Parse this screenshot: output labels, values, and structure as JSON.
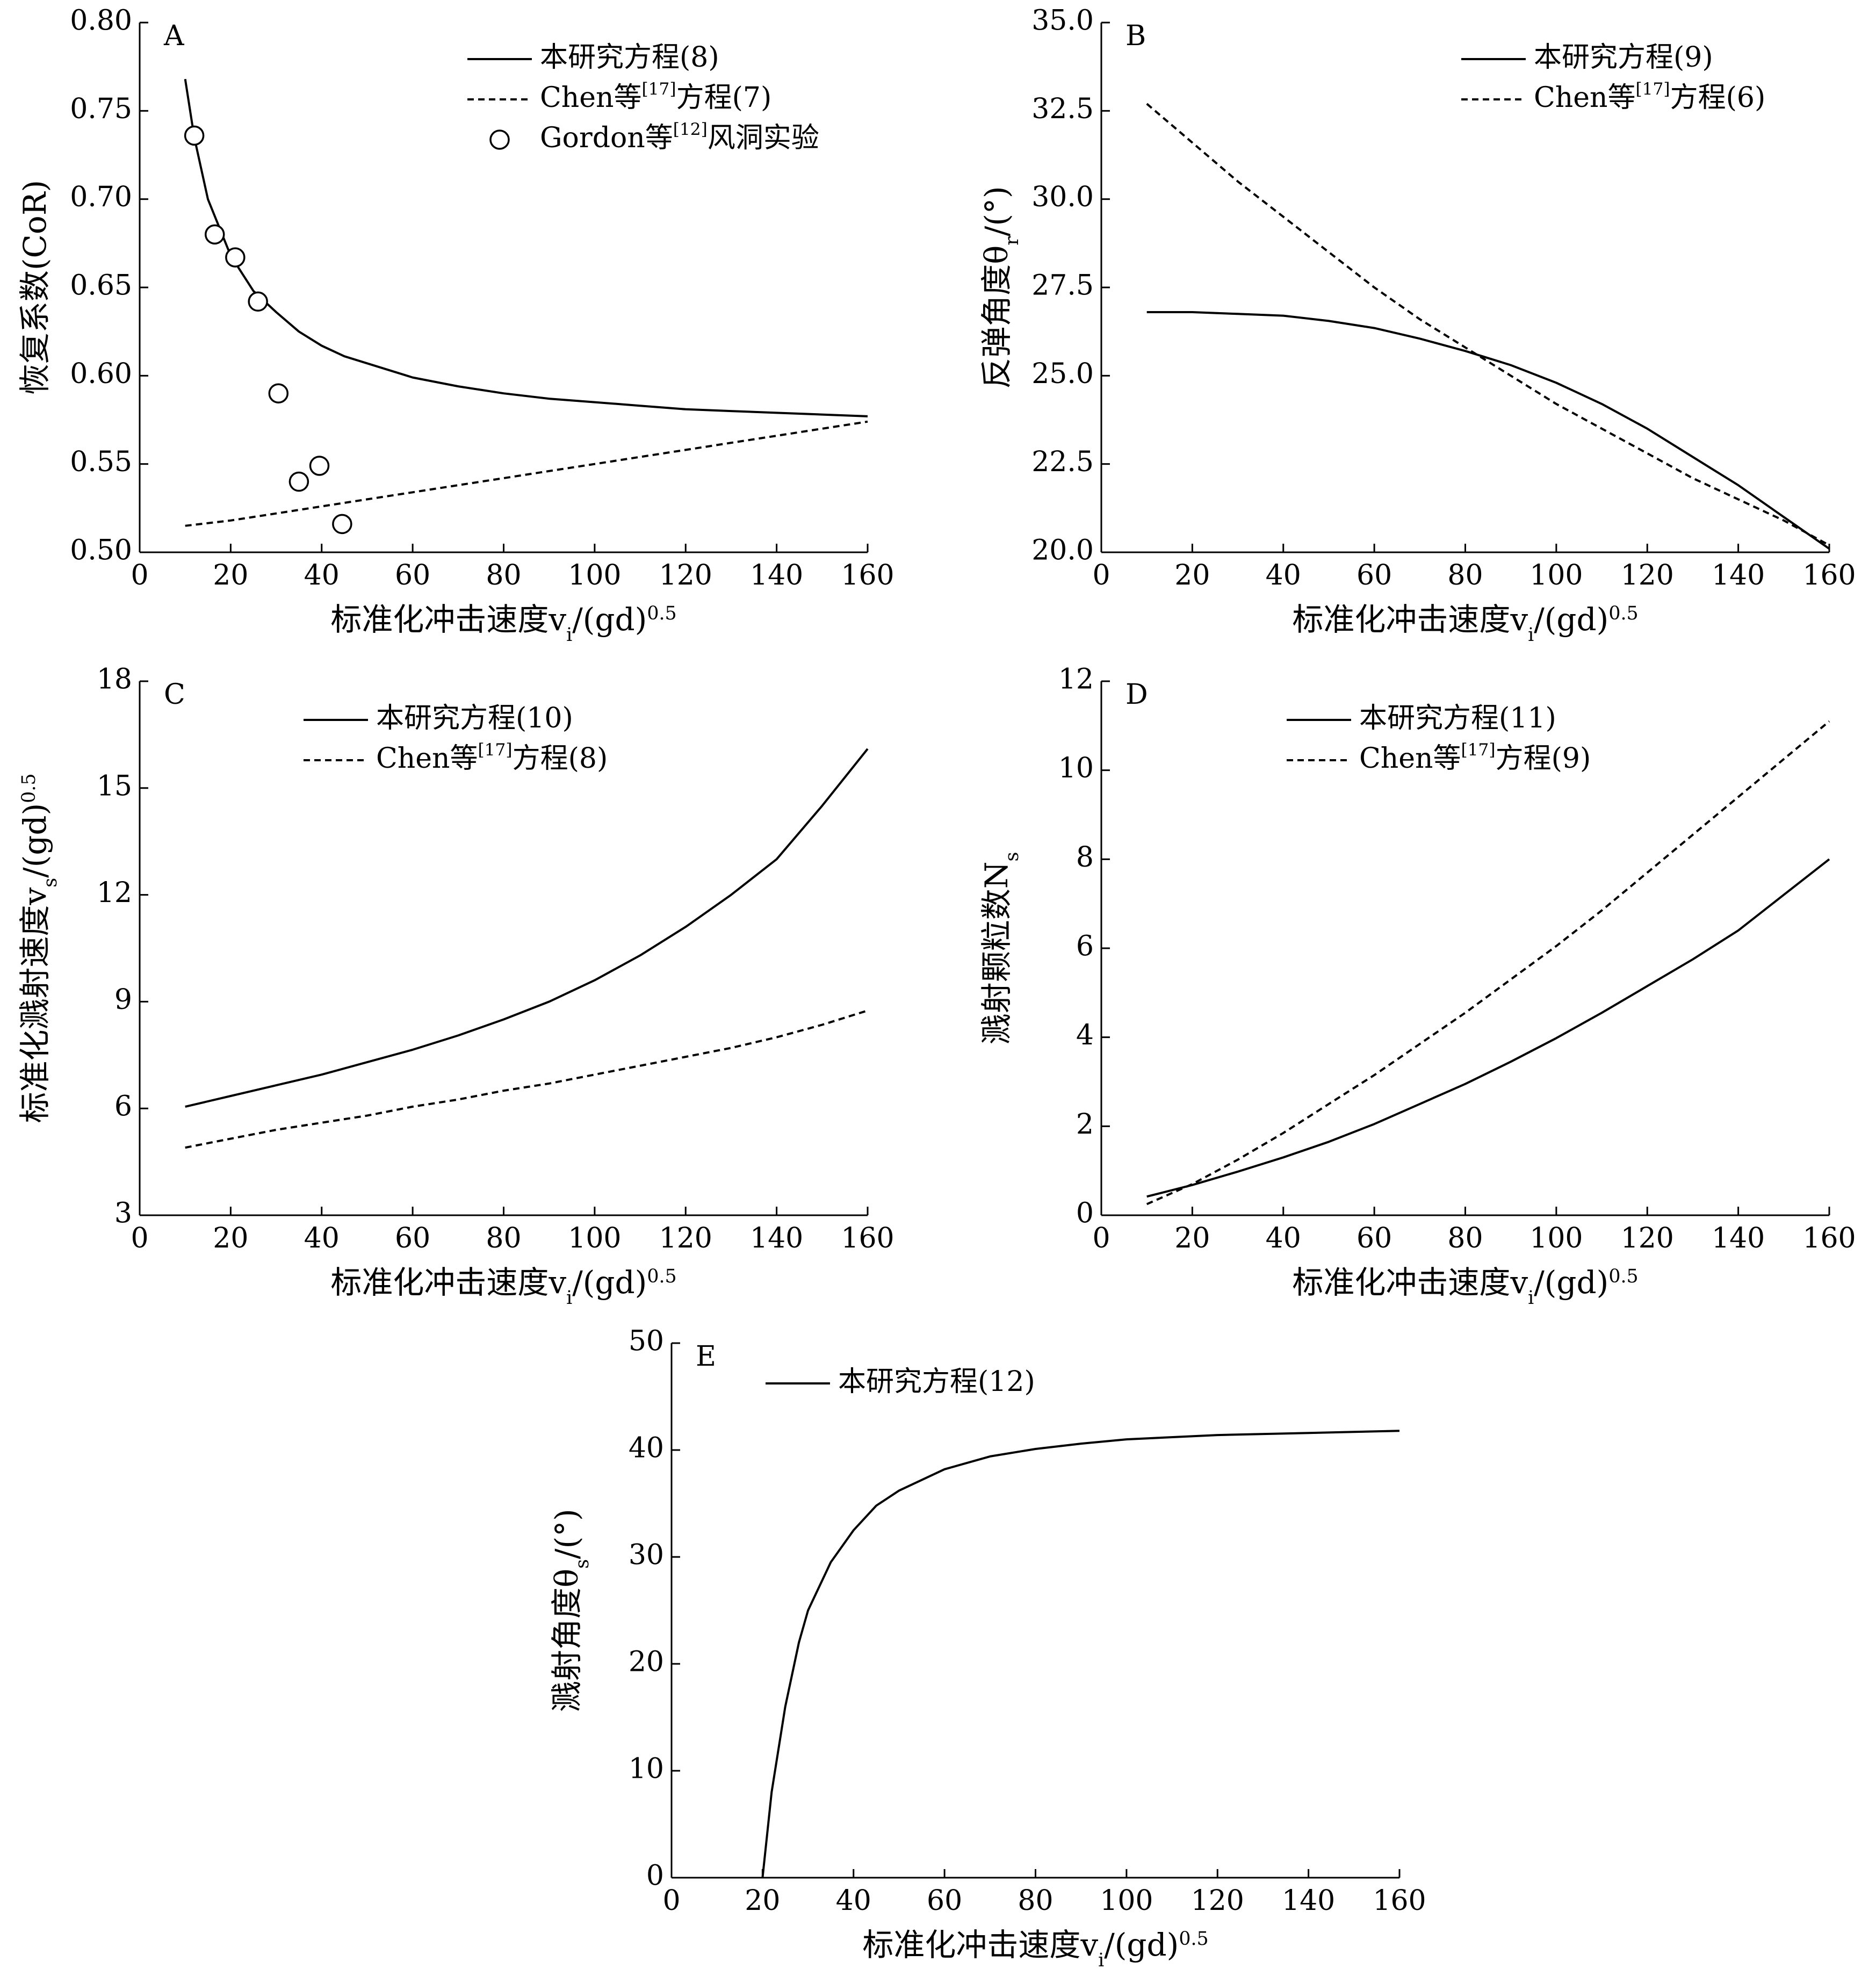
{
  "chart_data": [
    {
      "panel": "A",
      "type": "line",
      "xlabel": "标准化冲击速度v_i/(gd)^0.5",
      "ylabel": "恢复系数(CoR)",
      "xlim": [
        0,
        160
      ],
      "ylim": [
        0.5,
        0.8
      ],
      "xticks": [
        0,
        20,
        40,
        60,
        80,
        100,
        120,
        140,
        160
      ],
      "yticks": [
        0.5,
        0.55,
        0.6,
        0.65,
        0.7,
        0.75,
        0.8
      ],
      "ytick_decimals": 2,
      "grid": false,
      "legend_position": "top-right",
      "series": [
        {
          "name": "本研究方程(8)",
          "style": "solid",
          "x": [
            10,
            12,
            15,
            20,
            25,
            30,
            35,
            40,
            45,
            50,
            60,
            70,
            80,
            90,
            100,
            110,
            120,
            130,
            140,
            150,
            160
          ],
          "values": [
            0.768,
            0.735,
            0.7,
            0.668,
            0.648,
            0.636,
            0.625,
            0.617,
            0.611,
            0.607,
            0.599,
            0.594,
            0.59,
            0.587,
            0.585,
            0.583,
            0.581,
            0.58,
            0.579,
            0.578,
            0.577
          ]
        },
        {
          "name": "Chen等[17]方程(7)",
          "style": "dashed",
          "x": [
            10,
            20,
            30,
            40,
            50,
            60,
            70,
            80,
            90,
            100,
            110,
            120,
            130,
            140,
            150,
            160
          ],
          "values": [
            0.515,
            0.518,
            0.522,
            0.526,
            0.53,
            0.534,
            0.538,
            0.542,
            0.546,
            0.55,
            0.554,
            0.558,
            0.562,
            0.566,
            0.57,
            0.574
          ]
        },
        {
          "name": "Gordon等[12]风洞实验",
          "style": "markers",
          "x": [
            12,
            16.5,
            21,
            26,
            30.5,
            35,
            39.5,
            44.5
          ],
          "values": [
            0.736,
            0.68,
            0.667,
            0.642,
            0.59,
            0.54,
            0.549,
            0.516
          ]
        }
      ]
    },
    {
      "panel": "B",
      "type": "line",
      "xlabel": "标准化冲击速度v_i/(gd)^0.5",
      "ylabel": "反弹角度θ_r/(°)",
      "xlim": [
        0,
        160
      ],
      "ylim": [
        20,
        35
      ],
      "xticks": [
        0,
        20,
        40,
        60,
        80,
        100,
        120,
        140,
        160
      ],
      "yticks": [
        20,
        22.5,
        25,
        27.5,
        30,
        32.5,
        35
      ],
      "ytick_decimals": 1,
      "grid": false,
      "legend_position": "top-right",
      "series": [
        {
          "name": "本研究方程(9)",
          "style": "solid",
          "x": [
            10,
            20,
            30,
            40,
            50,
            60,
            70,
            80,
            90,
            100,
            110,
            120,
            130,
            140,
            150,
            160
          ],
          "values": [
            26.8,
            26.8,
            26.75,
            26.7,
            26.55,
            26.35,
            26.05,
            25.7,
            25.3,
            24.8,
            24.2,
            23.5,
            22.7,
            21.9,
            21.0,
            20.1
          ]
        },
        {
          "name": "Chen等[17]方程(6)",
          "style": "dashed",
          "x": [
            10,
            20,
            30,
            40,
            50,
            60,
            70,
            80,
            90,
            100,
            110,
            120,
            130,
            140,
            150,
            160
          ],
          "values": [
            32.7,
            31.6,
            30.5,
            29.5,
            28.5,
            27.5,
            26.6,
            25.8,
            25.0,
            24.2,
            23.5,
            22.8,
            22.1,
            21.5,
            20.9,
            20.2
          ]
        }
      ]
    },
    {
      "panel": "C",
      "type": "line",
      "xlabel": "标准化冲击速度v_i/(gd)^0.5",
      "ylabel": "标准化溅射速度v_s/(gd)^0.5",
      "xlim": [
        0,
        160
      ],
      "ylim": [
        3,
        18
      ],
      "xticks": [
        0,
        20,
        40,
        60,
        80,
        100,
        120,
        140,
        160
      ],
      "yticks": [
        3,
        6,
        9,
        12,
        15,
        18
      ],
      "ytick_decimals": 0,
      "grid": false,
      "legend_position": "top-left",
      "series": [
        {
          "name": "本研究方程(10)",
          "style": "solid",
          "x": [
            10,
            20,
            30,
            40,
            50,
            60,
            70,
            80,
            90,
            100,
            110,
            120,
            130,
            140,
            150,
            160
          ],
          "values": [
            6.05,
            6.35,
            6.65,
            6.95,
            7.3,
            7.65,
            8.05,
            8.5,
            9.0,
            9.6,
            10.3,
            11.1,
            12.0,
            13.0,
            14.5,
            16.1
          ]
        },
        {
          "name": "Chen等[17]方程(8)",
          "style": "dashed",
          "x": [
            10,
            20,
            30,
            40,
            50,
            60,
            70,
            80,
            90,
            100,
            110,
            120,
            130,
            140,
            150,
            160
          ],
          "values": [
            4.9,
            5.15,
            5.4,
            5.6,
            5.8,
            6.05,
            6.25,
            6.5,
            6.7,
            6.95,
            7.2,
            7.45,
            7.7,
            8.0,
            8.35,
            8.75
          ]
        }
      ]
    },
    {
      "panel": "D",
      "type": "line",
      "xlabel": "标准化冲击速度v_i/(gd)^0.5",
      "ylabel": "溅射颗粒数N_s",
      "xlim": [
        0,
        160
      ],
      "ylim": [
        0,
        12
      ],
      "xticks": [
        0,
        20,
        40,
        60,
        80,
        100,
        120,
        140,
        160
      ],
      "yticks": [
        0,
        2,
        4,
        6,
        8,
        10,
        12
      ],
      "ytick_decimals": 0,
      "grid": false,
      "legend_position": "top-left",
      "series": [
        {
          "name": "本研究方程(11)",
          "style": "solid",
          "x": [
            10,
            20,
            30,
            40,
            50,
            60,
            70,
            80,
            90,
            100,
            110,
            120,
            130,
            140,
            150,
            160
          ],
          "values": [
            0.42,
            0.68,
            0.98,
            1.3,
            1.65,
            2.05,
            2.5,
            2.95,
            3.45,
            3.98,
            4.55,
            5.15,
            5.75,
            6.4,
            7.2,
            8.0
          ]
        },
        {
          "name": "Chen等[17]方程(9)",
          "style": "dashed",
          "x": [
            10,
            20,
            30,
            40,
            50,
            60,
            70,
            80,
            90,
            100,
            110,
            120,
            130,
            140,
            150,
            160
          ],
          "values": [
            0.25,
            0.7,
            1.25,
            1.85,
            2.5,
            3.15,
            3.85,
            4.55,
            5.3,
            6.05,
            6.85,
            7.7,
            8.55,
            9.4,
            10.25,
            11.1
          ]
        }
      ]
    },
    {
      "panel": "E",
      "type": "line",
      "xlabel": "标准化冲击速度v_i/(gd)^0.5",
      "ylabel": "溅射角度θ_s/(°)",
      "xlim": [
        0,
        160
      ],
      "ylim": [
        0,
        50
      ],
      "xticks": [
        0,
        20,
        40,
        60,
        80,
        100,
        120,
        140,
        160
      ],
      "yticks": [
        0,
        10,
        20,
        30,
        40,
        50
      ],
      "ytick_decimals": 0,
      "grid": false,
      "legend_position": "top-left",
      "series": [
        {
          "name": "本研究方程(12)",
          "style": "solid",
          "x": [
            20,
            22,
            25,
            28,
            30,
            35,
            40,
            45,
            50,
            60,
            70,
            80,
            90,
            100,
            120,
            140,
            160
          ],
          "values": [
            0,
            8,
            16,
            22,
            25,
            29.5,
            32.5,
            34.8,
            36.2,
            38.2,
            39.4,
            40.1,
            40.6,
            41.0,
            41.4,
            41.6,
            41.8
          ]
        }
      ]
    }
  ]
}
